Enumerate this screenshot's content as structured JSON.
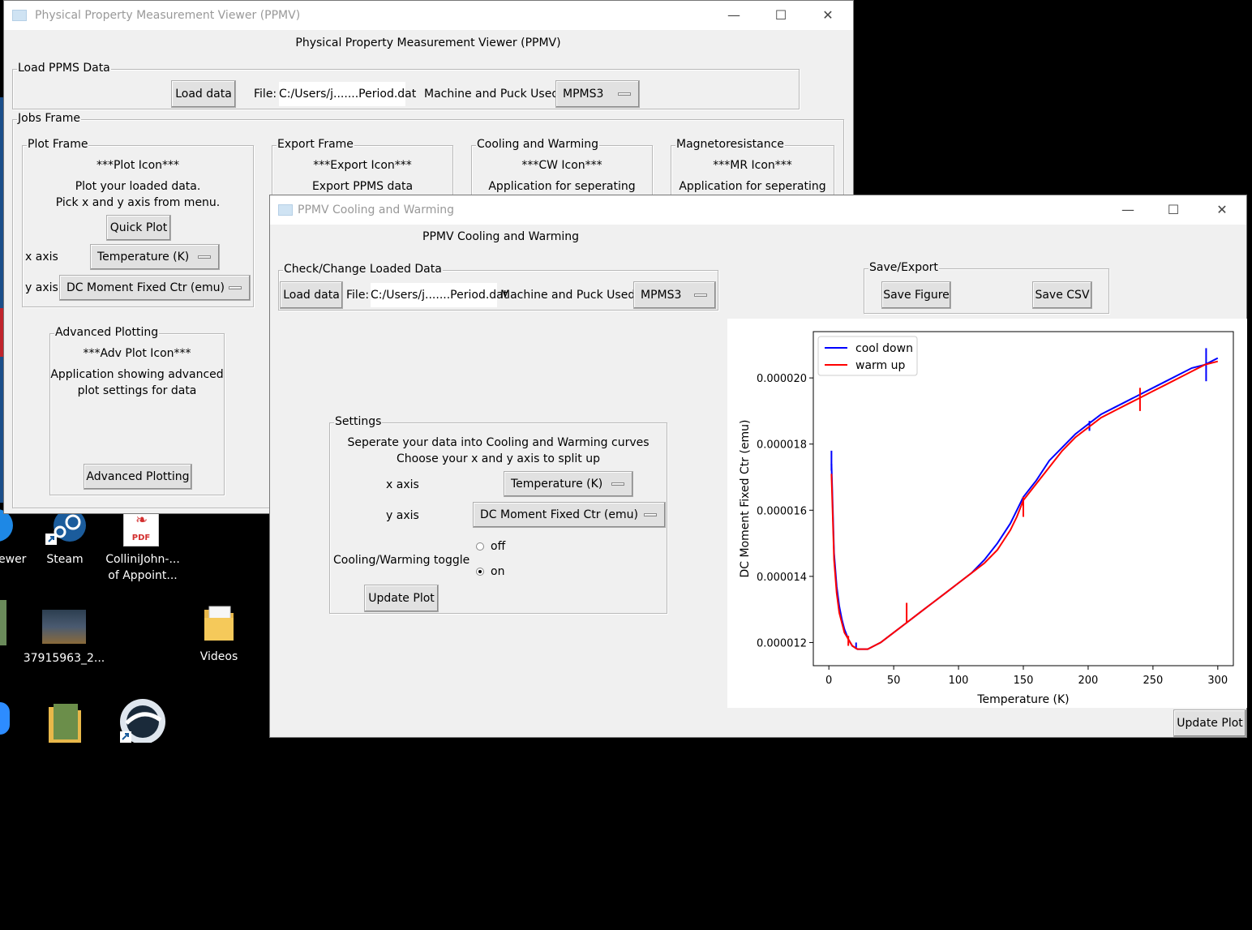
{
  "desktop": {
    "icons": [
      {
        "label": "ewer"
      },
      {
        "label": "Steam"
      },
      {
        "label": "ColliniJohn-...",
        "label2": "of Appoint..."
      },
      {
        "label": "37915963_2..."
      },
      {
        "label": "Videos"
      }
    ],
    "pdf_badge": "PDF"
  },
  "main_window": {
    "title": "Physical Property Measurement Viewer (PPMV)",
    "heading": "Physical Property Measurement Viewer (PPMV)",
    "load_frame": {
      "label": "Load PPMS Data",
      "load_button": "Load data",
      "file_label": "File:",
      "file_value": "C:/Users/j.......Period.dat",
      "machine_label": "Machine and Puck Used:",
      "machine_value": "MPMS3"
    },
    "jobs_frame": {
      "label": "Jobs Frame",
      "plot_frame": {
        "label": "Plot Frame",
        "icon_text": "***Plot Icon***",
        "desc1": "Plot your loaded data.",
        "desc2": "Pick x and y axis from menu.",
        "quick_plot": "Quick Plot",
        "x_label": "x axis",
        "x_value": "Temperature (K)",
        "y_label": "y axis",
        "y_value": "DC Moment Fixed Ctr (emu)"
      },
      "export_frame": {
        "label": "Export Frame",
        "icon_text": "***Export Icon***",
        "desc": "Export PPMS data"
      },
      "cw_frame": {
        "label": "Cooling and Warming",
        "icon_text": "***CW Icon***",
        "desc": "Application for seperating"
      },
      "mr_frame": {
        "label": "Magnetoresistance",
        "icon_text": "***MR Icon***",
        "desc": "Application for seperating"
      },
      "adv_frame": {
        "label": "Advanced Plotting",
        "icon_text": "***Adv Plot Icon***",
        "desc1": "Application showing advanced",
        "desc2": "plot settings for data",
        "button": "Advanced Plotting"
      }
    }
  },
  "cw_window": {
    "title": "PPMV Cooling and Warming",
    "heading": "PPMV Cooling and Warming",
    "check_frame": {
      "label": "Check/Change Loaded Data",
      "load_button": "Load data",
      "file_label": "File:",
      "file_value": "C:/Users/j.......Period.dat",
      "machine_label": "Machine and Puck Used:",
      "machine_value": "MPMS3"
    },
    "save_frame": {
      "label": "Save/Export",
      "save_figure": "Save Figure",
      "save_csv": "Save CSV"
    },
    "settings": {
      "label": "Settings",
      "desc1": "Seperate your data into Cooling and Warming curves",
      "desc2": "Choose your x and y axis to split up",
      "x_label": "x axis",
      "x_value": "Temperature (K)",
      "y_label": "y axis",
      "y_value": "DC Moment Fixed Ctr (emu)",
      "toggle_label": "Cooling/Warming toggle",
      "opt_off": "off",
      "opt_on": "on",
      "selected": "on",
      "update_button": "Update Plot"
    },
    "toolbar": {
      "icons": [
        "home-icon",
        "back-arrow-icon",
        "forward-arrow-icon",
        "pan-icon",
        "zoom-icon",
        "configure-subplots-icon",
        "save-icon"
      ],
      "update_button": "Update Plot"
    }
  },
  "chart_data": {
    "type": "line",
    "xlabel": "Temperature (K)",
    "ylabel": "DC Moment Fixed Ctr (emu)",
    "xlim": [
      -12,
      312
    ],
    "ylim": [
      1.13e-05,
      2.14e-05
    ],
    "xticks": [
      0,
      50,
      100,
      150,
      200,
      250,
      300
    ],
    "xtick_labels": [
      "0",
      "50",
      "100",
      "150",
      "200",
      "250",
      "300"
    ],
    "yticks": [
      1.2e-05,
      1.4e-05,
      1.6e-05,
      1.8e-05,
      2e-05
    ],
    "ytick_labels": [
      "0.000012",
      "0.000014",
      "0.000016",
      "0.000018",
      "0.000020"
    ],
    "legend": "top-left",
    "series": [
      {
        "name": "cool down",
        "color": "#0000ff",
        "x": [
          2,
          4,
          6,
          8,
          10,
          12,
          15,
          18,
          22,
          26,
          30,
          35,
          40,
          50,
          60,
          70,
          80,
          90,
          100,
          110,
          120,
          130,
          135,
          140,
          145,
          150,
          160,
          170,
          180,
          190,
          200,
          210,
          220,
          230,
          240,
          250,
          260,
          270,
          280,
          290,
          300
        ],
        "y": [
          1.74e-05,
          1.47e-05,
          1.37e-05,
          1.31e-05,
          1.27e-05,
          1.24e-05,
          1.21e-05,
          1.19e-05,
          1.18e-05,
          1.18e-05,
          1.18e-05,
          1.19e-05,
          1.2e-05,
          1.23e-05,
          1.26e-05,
          1.29e-05,
          1.32e-05,
          1.35e-05,
          1.38e-05,
          1.41e-05,
          1.45e-05,
          1.5e-05,
          1.53e-05,
          1.56e-05,
          1.6e-05,
          1.64e-05,
          1.69e-05,
          1.75e-05,
          1.79e-05,
          1.83e-05,
          1.86e-05,
          1.89e-05,
          1.91e-05,
          1.93e-05,
          1.95e-05,
          1.97e-05,
          1.99e-05,
          2.01e-05,
          2.03e-05,
          2.04e-05,
          2.06e-05
        ],
        "spikes": [
          {
            "x": 2,
            "y1": 1.72e-05,
            "y2": 1.78e-05
          },
          {
            "x": 21,
            "y1": 1.18e-05,
            "y2": 1.2e-05
          },
          {
            "x": 201,
            "y1": 1.84e-05,
            "y2": 1.87e-05
          },
          {
            "x": 291,
            "y1": 1.99e-05,
            "y2": 2.09e-05
          }
        ]
      },
      {
        "name": "warm up",
        "color": "#ff0000",
        "x": [
          2,
          4,
          6,
          8,
          10,
          12,
          15,
          18,
          22,
          26,
          30,
          35,
          40,
          50,
          60,
          70,
          80,
          90,
          100,
          110,
          120,
          130,
          135,
          140,
          145,
          150,
          160,
          170,
          180,
          190,
          200,
          210,
          220,
          230,
          240,
          250,
          260,
          270,
          280,
          290,
          300
        ],
        "y": [
          1.71e-05,
          1.45e-05,
          1.35e-05,
          1.29e-05,
          1.26e-05,
          1.23e-05,
          1.21e-05,
          1.19e-05,
          1.18e-05,
          1.18e-05,
          1.18e-05,
          1.19e-05,
          1.2e-05,
          1.23e-05,
          1.26e-05,
          1.29e-05,
          1.32e-05,
          1.35e-05,
          1.38e-05,
          1.41e-05,
          1.44e-05,
          1.48e-05,
          1.51e-05,
          1.54e-05,
          1.58e-05,
          1.63e-05,
          1.68e-05,
          1.73e-05,
          1.78e-05,
          1.82e-05,
          1.85e-05,
          1.88e-05,
          1.9e-05,
          1.92e-05,
          1.94e-05,
          1.96e-05,
          1.98e-05,
          2e-05,
          2.02e-05,
          2.04e-05,
          2.05e-05
        ],
        "spikes": [
          {
            "x": 15,
            "y1": 1.19e-05,
            "y2": 1.22e-05
          },
          {
            "x": 60,
            "y1": 1.26e-05,
            "y2": 1.32e-05
          },
          {
            "x": 150,
            "y1": 1.58e-05,
            "y2": 1.64e-05
          },
          {
            "x": 240,
            "y1": 1.9e-05,
            "y2": 1.97e-05
          }
        ]
      }
    ]
  }
}
